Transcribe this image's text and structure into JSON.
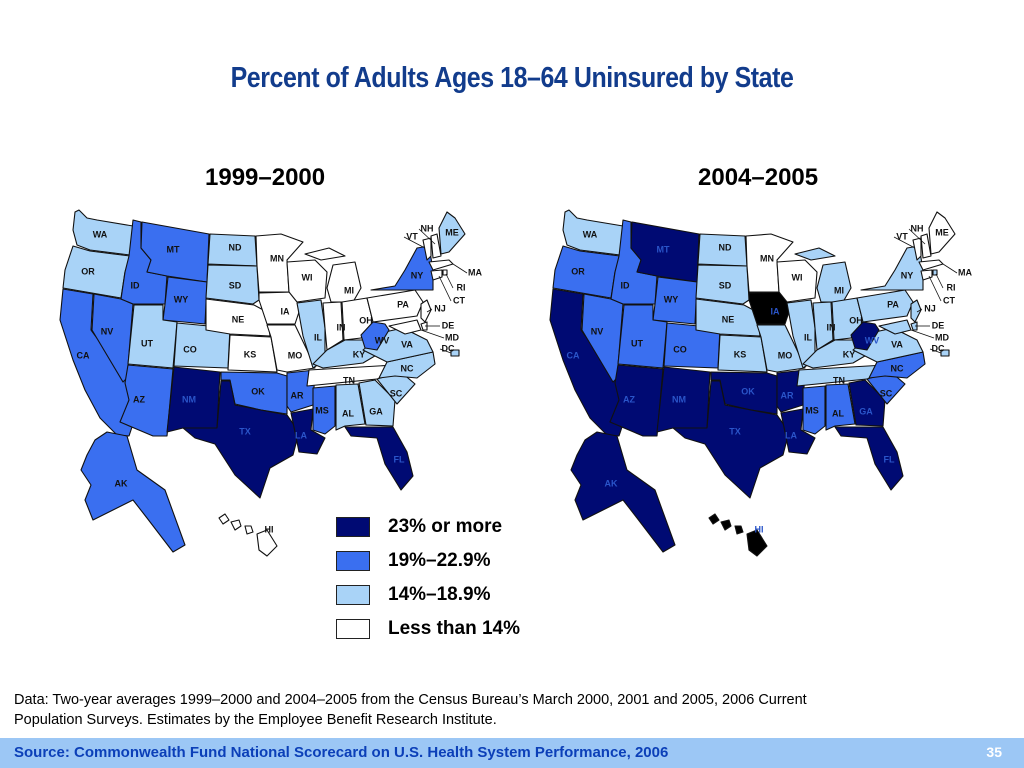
{
  "title": "Percent of Adults Ages 18–64 Uninsured by State",
  "legend": [
    {
      "key": "c1",
      "label": "23% or more",
      "color": "#000a73"
    },
    {
      "key": "c2",
      "label": "19%–22.9%",
      "color": "#3a6ff0"
    },
    {
      "key": "c3",
      "label": "14%–18.9%",
      "color": "#a9d3f7"
    },
    {
      "key": "c4",
      "label": "Less than 14%",
      "color": "#ffffff"
    }
  ],
  "highlight_color": "#000000",
  "maps": [
    {
      "heading": "1999–2000",
      "states": {
        "WA": "c3",
        "OR": "c3",
        "CA": "c2",
        "NV": "c2",
        "ID": "c2",
        "MT": "c2",
        "WY": "c2",
        "UT": "c3",
        "AZ": "c2",
        "CO": "c3",
        "NM": "c1",
        "ND": "c3",
        "SD": "c3",
        "NE": "c4",
        "KS": "c4",
        "OK": "c2",
        "TX": "c1",
        "MN": "c4",
        "IA": "c4",
        "MO": "c4",
        "AR": "c2",
        "LA": "c1",
        "WI": "c4",
        "IL": "c3",
        "MI": "c4",
        "IN": "c4",
        "OH": "c4",
        "KY": "c3",
        "TN": "c4",
        "MS": "c2",
        "AL": "c3",
        "GA": "c3",
        "FL": "c1",
        "SC": "c3",
        "NC": "c3",
        "VA": "c3",
        "WV": "c2",
        "PA": "c4",
        "NY": "c2",
        "VT": "c4",
        "NH": "c4",
        "ME": "c3",
        "MA": "c4",
        "RI": "c4",
        "CT": "c4",
        "NJ": "c4",
        "DE": "c4",
        "MD": "c4",
        "DC": "c3",
        "AK": "c2",
        "HI": "c4"
      }
    },
    {
      "heading": "2004–2005",
      "states": {
        "WA": "c3",
        "OR": "c2",
        "CA": "c1",
        "NV": "c2",
        "ID": "c2",
        "MT": "c1",
        "WY": "c2",
        "UT": "c2",
        "AZ": "c1",
        "CO": "c2",
        "NM": "c1",
        "ND": "c3",
        "SD": "c3",
        "NE": "c3",
        "KS": "c3",
        "OK": "c1",
        "TX": "c1",
        "MN": "c4",
        "IA": "hl",
        "MO": "c3",
        "AR": "c1",
        "LA": "c1",
        "WI": "c4",
        "IL": "c3",
        "MI": "c3",
        "IN": "c3",
        "OH": "c3",
        "KY": "c3",
        "TN": "c3",
        "MS": "c2",
        "AL": "c2",
        "GA": "c1",
        "FL": "c1",
        "SC": "c2",
        "NC": "c2",
        "VA": "c3",
        "WV": "c1",
        "PA": "c3",
        "NY": "c3",
        "VT": "c4",
        "NH": "c4",
        "ME": "c4",
        "MA": "c4",
        "RI": "c3",
        "CT": "c4",
        "NJ": "c3",
        "DE": "c3",
        "MD": "c3",
        "DC": "c3",
        "AK": "c1",
        "HI": "hl"
      }
    }
  ],
  "note": "Data: Two-year averages 1999–2000 and 2004–2005 from the Census Bureau’s March 2000, 2001 and 2005, 2006 Current Population Surveys. Estimates by the Employee Benefit Research Institute.",
  "footer": {
    "source": "Source: Commonwealth Fund National Scorecard on U.S. Health System Performance, 2006",
    "page": "35"
  }
}
